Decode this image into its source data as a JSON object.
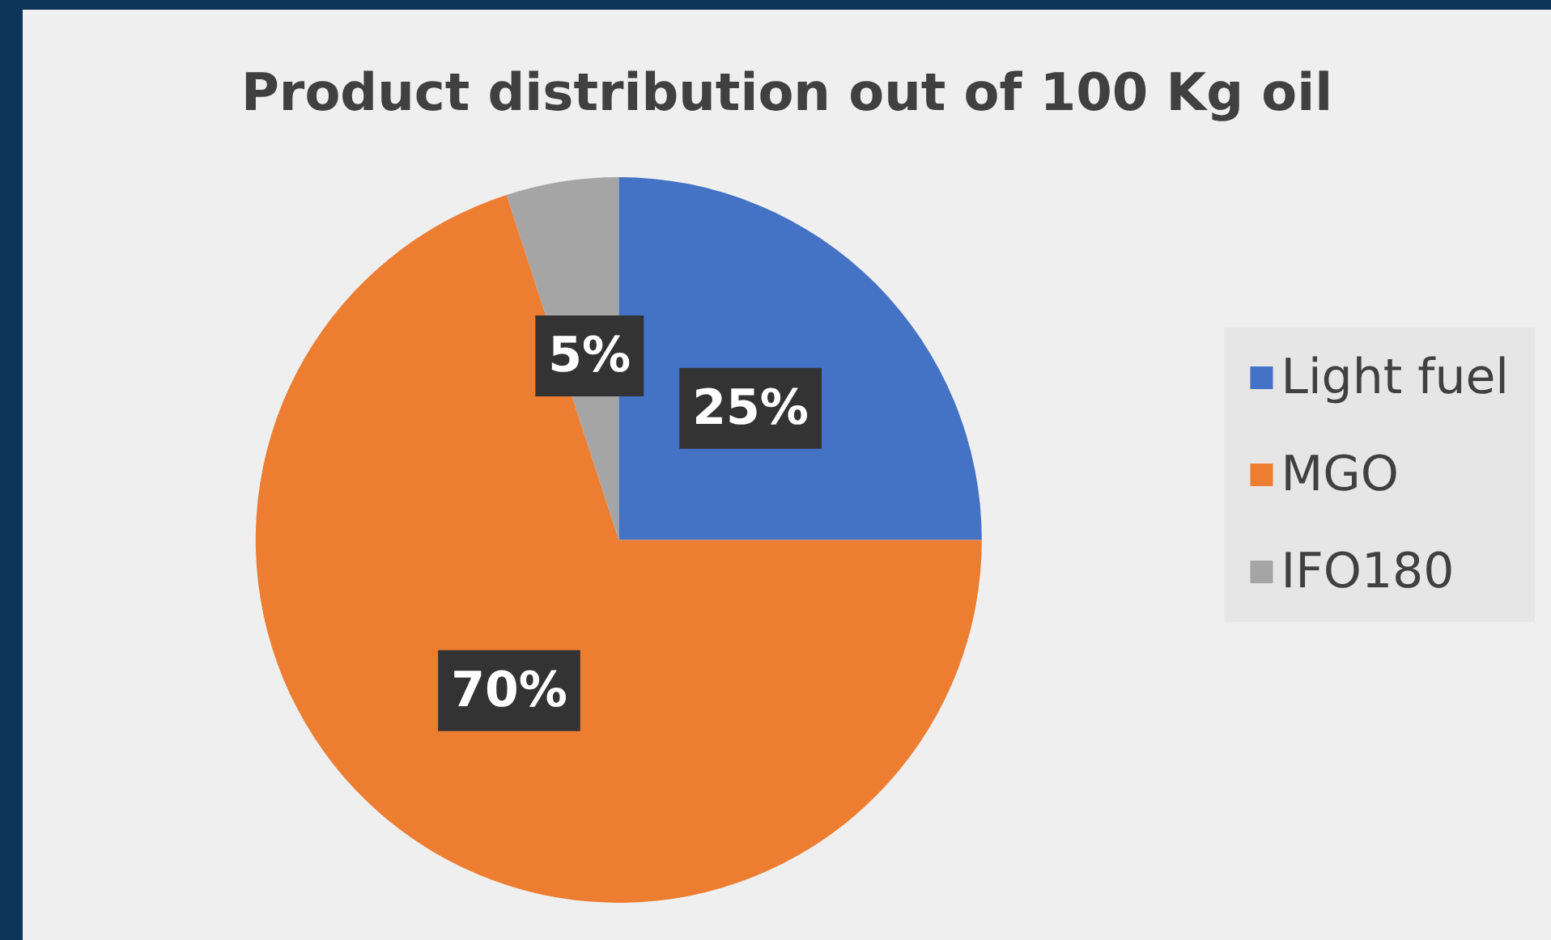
{
  "chart_data": {
    "type": "pie",
    "title": "Product distribution out of 100 Kg oil",
    "categories": [
      "Light fuel",
      "MGO",
      "IFO180"
    ],
    "values": [
      25,
      70,
      5
    ],
    "colors": [
      "#4472c4",
      "#ed7d31",
      "#a5a5a5"
    ],
    "value_labels": [
      "25%",
      "70%",
      "5%"
    ],
    "legend": "right"
  }
}
